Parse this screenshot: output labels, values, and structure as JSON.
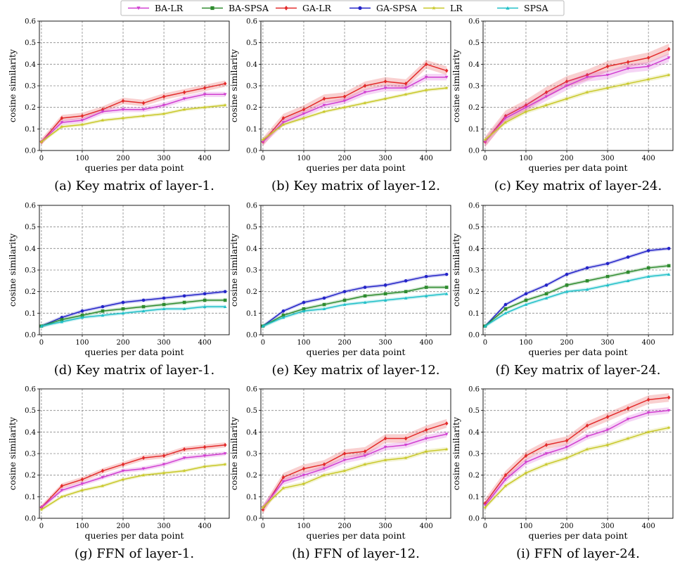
{
  "legend": [
    {
      "name": "BA-LR",
      "color": "#d13fd1",
      "marker": "triangle-down"
    },
    {
      "name": "BA-SPSA",
      "color": "#2e8b2e",
      "marker": "square"
    },
    {
      "name": "GA-LR",
      "color": "#e32b2b",
      "marker": "diamond"
    },
    {
      "name": "GA-SPSA",
      "color": "#2323c8",
      "marker": "circle"
    },
    {
      "name": "LR",
      "color": "#c8c828",
      "marker": "star"
    },
    {
      "name": "SPSA",
      "color": "#20c0c8",
      "marker": "triangle-up"
    }
  ],
  "chart_data": [
    {
      "type": "line",
      "caption": "(a) Key matrix of layer-1.",
      "xlabel": "queries per data point",
      "ylabel": "cosine similarity",
      "xlim": [
        -5,
        460
      ],
      "ylim": [
        0,
        0.6
      ],
      "grid": true,
      "xticks": [
        "0",
        "100",
        "200",
        "300",
        "400"
      ],
      "yticks": [
        "0.0",
        "0.1",
        "0.2",
        "0.3",
        "0.4",
        "0.5",
        "0.6"
      ],
      "x": [
        0,
        50,
        100,
        150,
        200,
        250,
        300,
        350,
        400,
        450
      ],
      "series": [
        {
          "name": "GA-LR",
          "values": [
            0.04,
            0.15,
            0.16,
            0.19,
            0.23,
            0.22,
            0.25,
            0.27,
            0.29,
            0.31
          ],
          "band": 0.015
        },
        {
          "name": "BA-LR",
          "values": [
            0.04,
            0.13,
            0.14,
            0.18,
            0.19,
            0.19,
            0.21,
            0.24,
            0.26,
            0.26
          ],
          "band": 0.012
        },
        {
          "name": "LR",
          "values": [
            0.04,
            0.11,
            0.12,
            0.14,
            0.15,
            0.16,
            0.17,
            0.19,
            0.2,
            0.21
          ],
          "band": 0.008
        }
      ]
    },
    {
      "type": "line",
      "caption": "(b) Key matrix of layer-12.",
      "xlabel": "queries per data point",
      "ylabel": "cosine similarity",
      "xlim": [
        -5,
        460
      ],
      "ylim": [
        0,
        0.6
      ],
      "grid": true,
      "xticks": [
        "0",
        "100",
        "200",
        "300",
        "400"
      ],
      "yticks": [
        "0.0",
        "0.1",
        "0.2",
        "0.3",
        "0.4",
        "0.5",
        "0.6"
      ],
      "x": [
        0,
        50,
        100,
        150,
        200,
        250,
        300,
        350,
        400,
        450
      ],
      "series": [
        {
          "name": "GA-LR",
          "values": [
            0.04,
            0.15,
            0.19,
            0.24,
            0.25,
            0.3,
            0.32,
            0.31,
            0.4,
            0.37
          ],
          "band": 0.02
        },
        {
          "name": "BA-LR",
          "values": [
            0.04,
            0.13,
            0.17,
            0.21,
            0.23,
            0.27,
            0.29,
            0.29,
            0.34,
            0.34
          ],
          "band": 0.015
        },
        {
          "name": "LR",
          "values": [
            0.05,
            0.12,
            0.15,
            0.18,
            0.2,
            0.22,
            0.24,
            0.26,
            0.28,
            0.29
          ],
          "band": 0.008
        }
      ]
    },
    {
      "type": "line",
      "caption": "(c) Key matrix of layer-24.",
      "xlabel": "queries per data point",
      "ylabel": "cosine similarity",
      "xlim": [
        -5,
        460
      ],
      "ylim": [
        0,
        0.6
      ],
      "grid": true,
      "xticks": [
        "0",
        "100",
        "200",
        "300",
        "400"
      ],
      "yticks": [
        "0.0",
        "0.1",
        "0.2",
        "0.3",
        "0.4",
        "0.5",
        "0.6"
      ],
      "x": [
        0,
        50,
        100,
        150,
        200,
        250,
        300,
        350,
        400,
        450
      ],
      "series": [
        {
          "name": "GA-LR",
          "values": [
            0.04,
            0.16,
            0.21,
            0.27,
            0.32,
            0.35,
            0.39,
            0.41,
            0.43,
            0.47
          ],
          "band": 0.025
        },
        {
          "name": "BA-LR",
          "values": [
            0.04,
            0.15,
            0.2,
            0.25,
            0.3,
            0.34,
            0.35,
            0.38,
            0.39,
            0.43
          ],
          "band": 0.02
        },
        {
          "name": "LR",
          "values": [
            0.05,
            0.13,
            0.18,
            0.21,
            0.24,
            0.27,
            0.29,
            0.31,
            0.33,
            0.35
          ],
          "band": 0.01
        }
      ]
    },
    {
      "type": "line",
      "caption": "(d) Key matrix of layer-1.",
      "xlabel": "queries per data point",
      "ylabel": "cosine similarity",
      "xlim": [
        -5,
        460
      ],
      "ylim": [
        0,
        0.6
      ],
      "grid": true,
      "xticks": [
        "0",
        "100",
        "200",
        "300",
        "400"
      ],
      "yticks": [
        "0.0",
        "0.1",
        "0.2",
        "0.3",
        "0.4",
        "0.5",
        "0.6"
      ],
      "x": [
        0,
        50,
        100,
        150,
        200,
        250,
        300,
        350,
        400,
        450
      ],
      "series": [
        {
          "name": "GA-SPSA",
          "values": [
            0.04,
            0.08,
            0.11,
            0.13,
            0.15,
            0.16,
            0.17,
            0.18,
            0.19,
            0.2
          ],
          "band": 0.008
        },
        {
          "name": "BA-SPSA",
          "values": [
            0.04,
            0.07,
            0.09,
            0.11,
            0.12,
            0.13,
            0.14,
            0.15,
            0.16,
            0.16
          ],
          "band": 0.008
        },
        {
          "name": "SPSA",
          "values": [
            0.04,
            0.06,
            0.08,
            0.09,
            0.1,
            0.11,
            0.12,
            0.12,
            0.13,
            0.13
          ],
          "band": 0.008
        }
      ]
    },
    {
      "type": "line",
      "caption": "(e) Key matrix of layer-12.",
      "xlabel": "queries per data point",
      "ylabel": "cosine similarity",
      "xlim": [
        -5,
        460
      ],
      "ylim": [
        0,
        0.6
      ],
      "grid": true,
      "xticks": [
        "0",
        "100",
        "200",
        "300",
        "400"
      ],
      "yticks": [
        "0.0",
        "0.1",
        "0.2",
        "0.3",
        "0.4",
        "0.5",
        "0.6"
      ],
      "x": [
        0,
        50,
        100,
        150,
        200,
        250,
        300,
        350,
        400,
        450
      ],
      "series": [
        {
          "name": "GA-SPSA",
          "values": [
            0.04,
            0.11,
            0.15,
            0.17,
            0.2,
            0.22,
            0.23,
            0.25,
            0.27,
            0.28
          ],
          "band": 0.008
        },
        {
          "name": "BA-SPSA",
          "values": [
            0.04,
            0.09,
            0.12,
            0.14,
            0.16,
            0.18,
            0.19,
            0.2,
            0.22,
            0.22
          ],
          "band": 0.008
        },
        {
          "name": "SPSA",
          "values": [
            0.04,
            0.08,
            0.11,
            0.12,
            0.14,
            0.15,
            0.16,
            0.17,
            0.18,
            0.19
          ],
          "band": 0.008
        }
      ]
    },
    {
      "type": "line",
      "caption": "(f) Key matrix of layer-24.",
      "xlabel": "queries per data point",
      "ylabel": "cosine similarity",
      "xlim": [
        -5,
        460
      ],
      "ylim": [
        0,
        0.6
      ],
      "grid": true,
      "xticks": [
        "0",
        "100",
        "200",
        "300",
        "400"
      ],
      "yticks": [
        "0.0",
        "0.1",
        "0.2",
        "0.3",
        "0.4",
        "0.5",
        "0.6"
      ],
      "x": [
        0,
        50,
        100,
        150,
        200,
        250,
        300,
        350,
        400,
        450
      ],
      "series": [
        {
          "name": "GA-SPSA",
          "values": [
            0.04,
            0.14,
            0.19,
            0.23,
            0.28,
            0.31,
            0.33,
            0.36,
            0.39,
            0.4
          ],
          "band": 0.008
        },
        {
          "name": "BA-SPSA",
          "values": [
            0.04,
            0.12,
            0.16,
            0.19,
            0.23,
            0.25,
            0.27,
            0.29,
            0.31,
            0.32
          ],
          "band": 0.008
        },
        {
          "name": "SPSA",
          "values": [
            0.04,
            0.1,
            0.14,
            0.17,
            0.2,
            0.21,
            0.23,
            0.25,
            0.27,
            0.28
          ],
          "band": 0.008
        }
      ]
    },
    {
      "type": "line",
      "caption": "(g) FFN of layer-1.",
      "xlabel": "queries per data point",
      "ylabel": "cosine similarity",
      "xlim": [
        -5,
        460
      ],
      "ylim": [
        0,
        0.6
      ],
      "grid": true,
      "xticks": [
        "0",
        "100",
        "200",
        "300",
        "400"
      ],
      "yticks": [
        "0.0",
        "0.1",
        "0.2",
        "0.3",
        "0.4",
        "0.5",
        "0.6"
      ],
      "x": [
        0,
        50,
        100,
        150,
        200,
        250,
        300,
        350,
        400,
        450
      ],
      "series": [
        {
          "name": "GA-LR",
          "values": [
            0.05,
            0.15,
            0.18,
            0.22,
            0.25,
            0.28,
            0.29,
            0.32,
            0.33,
            0.34
          ],
          "band": 0.012
        },
        {
          "name": "BA-LR",
          "values": [
            0.05,
            0.13,
            0.16,
            0.19,
            0.22,
            0.23,
            0.25,
            0.28,
            0.29,
            0.3
          ],
          "band": 0.01
        },
        {
          "name": "LR",
          "values": [
            0.04,
            0.1,
            0.13,
            0.15,
            0.18,
            0.2,
            0.21,
            0.22,
            0.24,
            0.25
          ],
          "band": 0.008
        }
      ]
    },
    {
      "type": "line",
      "caption": "(h) FFN of layer-12.",
      "xlabel": "queries per data point",
      "ylabel": "cosine similarity",
      "xlim": [
        -5,
        460
      ],
      "ylim": [
        0,
        0.6
      ],
      "grid": true,
      "xticks": [
        "0",
        "100",
        "200",
        "300",
        "400"
      ],
      "yticks": [
        "0.0",
        "0.1",
        "0.2",
        "0.3",
        "0.4",
        "0.5",
        "0.6"
      ],
      "x": [
        0,
        50,
        100,
        150,
        200,
        250,
        300,
        350,
        400,
        450
      ],
      "series": [
        {
          "name": "GA-LR",
          "values": [
            0.04,
            0.19,
            0.23,
            0.25,
            0.3,
            0.31,
            0.37,
            0.37,
            0.41,
            0.44
          ],
          "band": 0.02
        },
        {
          "name": "BA-LR",
          "values": [
            0.05,
            0.17,
            0.2,
            0.23,
            0.27,
            0.29,
            0.33,
            0.34,
            0.37,
            0.39
          ],
          "band": 0.015
        },
        {
          "name": "LR",
          "values": [
            0.05,
            0.14,
            0.16,
            0.2,
            0.22,
            0.25,
            0.27,
            0.28,
            0.31,
            0.32
          ],
          "band": 0.01
        }
      ]
    },
    {
      "type": "line",
      "caption": "(i) FFN of layer-24.",
      "xlabel": "queries per data point",
      "ylabel": "cosine similarity",
      "xlim": [
        -5,
        460
      ],
      "ylim": [
        0,
        0.6
      ],
      "grid": true,
      "xticks": [
        "0",
        "100",
        "200",
        "300",
        "400"
      ],
      "yticks": [
        "0.0",
        "0.1",
        "0.2",
        "0.3",
        "0.4",
        "0.5",
        "0.6"
      ],
      "x": [
        0,
        50,
        100,
        150,
        200,
        250,
        300,
        350,
        400,
        450
      ],
      "series": [
        {
          "name": "GA-LR",
          "values": [
            0.07,
            0.2,
            0.29,
            0.34,
            0.36,
            0.43,
            0.47,
            0.51,
            0.55,
            0.56
          ],
          "band": 0.02
        },
        {
          "name": "BA-LR",
          "values": [
            0.06,
            0.18,
            0.26,
            0.3,
            0.33,
            0.38,
            0.41,
            0.46,
            0.49,
            0.5
          ],
          "band": 0.015
        },
        {
          "name": "LR",
          "values": [
            0.05,
            0.15,
            0.21,
            0.25,
            0.28,
            0.32,
            0.34,
            0.37,
            0.4,
            0.42
          ],
          "band": 0.01
        }
      ]
    }
  ]
}
